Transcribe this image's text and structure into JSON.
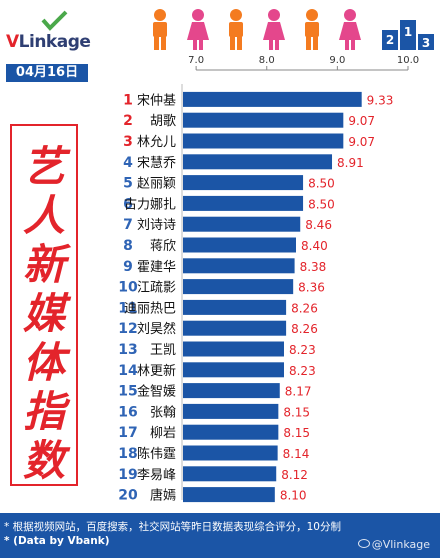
{
  "header": {
    "brand_prefix": "V",
    "brand_rest": "Linkage",
    "date": "04月16日",
    "person_colors": [
      "#f47b20",
      "#e4478c",
      "#f47b20",
      "#e4478c",
      "#f47b20",
      "#e4478c"
    ]
  },
  "side_title": [
    "艺",
    "人",
    "新",
    "媒",
    "体",
    "指",
    "数"
  ],
  "chart_data": {
    "type": "bar",
    "orientation": "horizontal",
    "xlim": [
      6.8,
      10.0
    ],
    "x_ticks": [
      "7.0",
      "8.0",
      "9.0",
      "10.0"
    ],
    "x_tick_values": [
      7.0,
      8.0,
      9.0,
      10.0
    ],
    "ranks": [
      "1",
      "2",
      "3",
      "4",
      "5",
      "6",
      "7",
      "8",
      "9",
      "10",
      "11",
      "12",
      "13",
      "14",
      "15",
      "16",
      "17",
      "18",
      "19",
      "20"
    ],
    "categories": [
      "宋仲基",
      "胡歌",
      "林允儿",
      "宋慧乔",
      "赵丽颖",
      "古力娜扎",
      "刘诗诗",
      "蒋欣",
      "霍建华",
      "江疏影",
      "迪丽热巴",
      "刘昊然",
      "王凯",
      "林更新",
      "金智媛",
      "张翰",
      "柳岩",
      "陈伟霆",
      "李易峰",
      "唐嫣"
    ],
    "values": [
      9.33,
      9.07,
      9.07,
      8.91,
      8.5,
      8.5,
      8.46,
      8.4,
      8.38,
      8.36,
      8.26,
      8.26,
      8.23,
      8.23,
      8.17,
      8.15,
      8.15,
      8.14,
      8.12,
      8.1
    ],
    "value_labels": [
      "9.33",
      "9.07",
      "9.07",
      "8.91",
      "8.50",
      "8.50",
      "8.46",
      "8.40",
      "8.38",
      "8.36",
      "8.26",
      "8.26",
      "8.23",
      "8.23",
      "8.17",
      "8.15",
      "8.15",
      "8.14",
      "8.12",
      "8.10"
    ],
    "colors": {
      "bar": "#1b55a6",
      "rank": "#e3242b",
      "value": "#e3242b",
      "rank_top": "#e3242b",
      "rank_rest": "#2f64b5"
    },
    "grid": false
  },
  "footer": {
    "note1": "* 根据视频网站，百度搜索，社交网站等昨日数据表现综合评分，10分制",
    "note2": "* (Data by Vbank)",
    "watermark": "@Vlinkage"
  }
}
